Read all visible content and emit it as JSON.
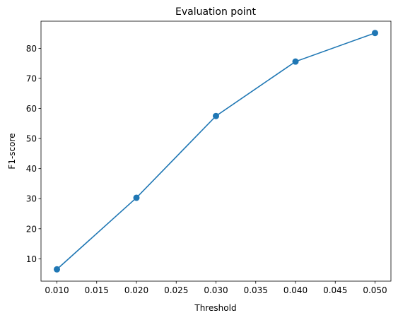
{
  "chart_data": {
    "type": "line",
    "title": "Evaluation point",
    "xlabel": "Threshold",
    "ylabel": "F1-score",
    "x": [
      0.01,
      0.02,
      0.03,
      0.04,
      0.05
    ],
    "series": [
      {
        "values": [
          6.5,
          30.3,
          57.5,
          75.6,
          85.1
        ],
        "color": "#1f77b4",
        "marker": "circle"
      }
    ],
    "xticks": [
      "0.010",
      "0.015",
      "0.020",
      "0.025",
      "0.030",
      "0.035",
      "0.040",
      "0.045",
      "0.050"
    ],
    "yticks": [
      "10",
      "20",
      "30",
      "40",
      "50",
      "60",
      "70",
      "80"
    ],
    "xlim": [
      0.008,
      0.052
    ],
    "ylim": [
      2.57,
      89.03
    ],
    "grid": false,
    "legend": "none"
  }
}
